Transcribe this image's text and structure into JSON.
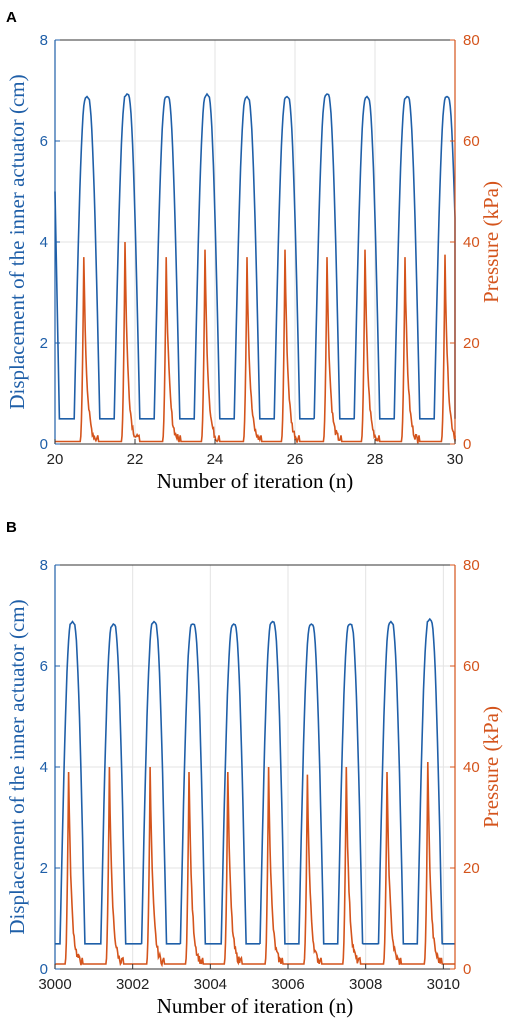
{
  "chart_data": [
    {
      "panel": "A",
      "type": "line",
      "xlabel": "Number of iteration (n)",
      "ylabel_left": "Displacement of the inner actuator (cm)",
      "ylabel_right": "Pressure (kPa)",
      "xlim": [
        20,
        30
      ],
      "ylim_left": [
        0,
        8
      ],
      "ylim_right": [
        0,
        80
      ],
      "xticks": [
        "20",
        "22",
        "24",
        "26",
        "28",
        "30"
      ],
      "yticks_left": [
        "0",
        "2",
        "4",
        "6",
        "8"
      ],
      "yticks_right": [
        "0",
        "20",
        "40",
        "60",
        "80"
      ],
      "grid": true,
      "colors": {
        "displacement": "#1f5fa8",
        "pressure": "#d4541c"
      },
      "displacement": {
        "min": 0.5,
        "start": 5.0,
        "peaks": [
          {
            "x": 20.8,
            "y": 6.85
          },
          {
            "x": 21.8,
            "y": 6.9
          },
          {
            "x": 22.8,
            "y": 6.85
          },
          {
            "x": 23.8,
            "y": 6.9
          },
          {
            "x": 24.8,
            "y": 6.85
          },
          {
            "x": 25.8,
            "y": 6.85
          },
          {
            "x": 26.8,
            "y": 6.9
          },
          {
            "x": 27.8,
            "y": 6.85
          },
          {
            "x": 28.8,
            "y": 6.85
          },
          {
            "x": 29.8,
            "y": 6.85
          }
        ]
      },
      "pressure": {
        "baseline": 0.5,
        "peaks": [
          {
            "x": 20.72,
            "y": 37
          },
          {
            "x": 21.75,
            "y": 40
          },
          {
            "x": 22.78,
            "y": 37
          },
          {
            "x": 23.75,
            "y": 38.5
          },
          {
            "x": 24.8,
            "y": 37
          },
          {
            "x": 25.75,
            "y": 38.5
          },
          {
            "x": 26.8,
            "y": 37
          },
          {
            "x": 27.75,
            "y": 38.5
          },
          {
            "x": 28.75,
            "y": 37
          },
          {
            "x": 29.75,
            "y": 37.5
          }
        ]
      }
    },
    {
      "panel": "B",
      "type": "line",
      "xlabel": "Number of iteration (n)",
      "ylabel_left": "Displacement of the inner actuator (cm)",
      "ylabel_right": "Pressure (kPa)",
      "xlim": [
        3000,
        3010.3
      ],
      "ylim_left": [
        0,
        8
      ],
      "ylim_right": [
        0,
        80
      ],
      "xticks": [
        "3000",
        "3002",
        "3004",
        "3006",
        "3008",
        "3010"
      ],
      "yticks_left": [
        "0",
        "2",
        "4",
        "6",
        "8"
      ],
      "yticks_right": [
        "0",
        "20",
        "40",
        "60",
        "80"
      ],
      "grid": true,
      "colors": {
        "displacement": "#1f5fa8",
        "pressure": "#d4541c"
      },
      "displacement": {
        "min": 0.5,
        "start": 0.5,
        "peaks": [
          {
            "x": 3000.45,
            "y": 6.85
          },
          {
            "x": 3001.5,
            "y": 6.8
          },
          {
            "x": 3002.55,
            "y": 6.85
          },
          {
            "x": 3003.55,
            "y": 6.8
          },
          {
            "x": 3004.6,
            "y": 6.8
          },
          {
            "x": 3005.6,
            "y": 6.85
          },
          {
            "x": 3006.6,
            "y": 6.8
          },
          {
            "x": 3007.6,
            "y": 6.8
          },
          {
            "x": 3008.65,
            "y": 6.85
          },
          {
            "x": 3009.65,
            "y": 6.9
          }
        ]
      },
      "pressure": {
        "baseline": 1.0,
        "peaks": [
          {
            "x": 3000.35,
            "y": 39
          },
          {
            "x": 3001.4,
            "y": 40
          },
          {
            "x": 3002.45,
            "y": 40
          },
          {
            "x": 3003.45,
            "y": 39
          },
          {
            "x": 3004.45,
            "y": 39
          },
          {
            "x": 3005.5,
            "y": 40
          },
          {
            "x": 3006.5,
            "y": 38.5
          },
          {
            "x": 3007.5,
            "y": 40
          },
          {
            "x": 3008.55,
            "y": 39
          },
          {
            "x": 3009.6,
            "y": 41
          }
        ]
      }
    }
  ]
}
